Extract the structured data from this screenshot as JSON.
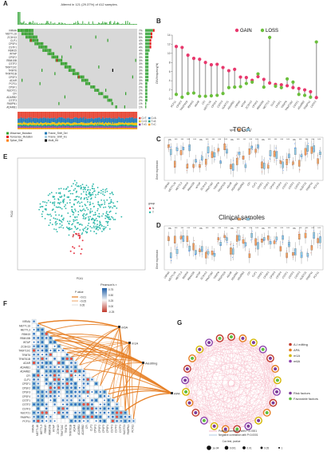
{
  "panels": [
    "A",
    "B",
    "C",
    "D",
    "E",
    "F",
    "G"
  ],
  "oncoprint": {
    "title": "Altered in 121 (29.37%) of 412 samples.",
    "genes": [
      "VIRMA",
      "METTL16",
      "ZC3H13",
      "CLP1",
      "CPSF4",
      "CSTF1",
      "RBM15",
      "WTAP",
      "CPSF2",
      "RBM15B",
      "CSTF2",
      "TRMT10C",
      "TRMT6",
      "TRMT61B",
      "CPSF3",
      "ADAR",
      "PCF11",
      "CPSF1",
      "NUDT21",
      "CFI",
      "ADARB2",
      "CSTF3",
      "PABPN1",
      "ADARB1"
    ],
    "percents": [
      "7%",
      "5%",
      "5%",
      "4%",
      "4%",
      "4%",
      "4%",
      "3%",
      "3%",
      "3%",
      "3%",
      "3%",
      "3%",
      "3%",
      "3%",
      "3%",
      "2%",
      "2%",
      "2%",
      "2%",
      "2%",
      "2%",
      "1%",
      "1%"
    ],
    "variant_legend": [
      "Missense_Mutation",
      "Nonsense_Mutation",
      "Splice_Site",
      "Frame_Shift_Del",
      "Frame_Shift_Ins",
      "Multi_Hit"
    ],
    "snv_legend": [
      "C>T",
      "C>A",
      "C>G",
      "T>A",
      "T>G",
      "T>C"
    ],
    "colors": {
      "missense": "#33a02c",
      "nonsense": "#e31a1c",
      "splice": "#ff7f00",
      "fsdel": "#1f78b4",
      "fsins": "#a6cee3",
      "multi": "#000000"
    }
  },
  "panel_b": {
    "ylabel": "CNV.frequency(%)",
    "legend": [
      {
        "label": "GAIN",
        "color": "#e8386d"
      },
      {
        "label": "LOSS",
        "color": "#6bbf3c"
      }
    ],
    "yticks": [
      "0",
      "2",
      "4",
      "6",
      "8",
      "10",
      "12",
      "14"
    ]
  },
  "panel_c": {
    "title": "TCGA",
    "ylabel": "Gene expression",
    "legend_title": "type",
    "legend_items": [
      "N",
      "T"
    ]
  },
  "panel_d": {
    "title": "Clinical samoles",
    "ylabel": "Gene expression",
    "legend_title": "type",
    "legend_items": [
      "N",
      "T"
    ]
  },
  "panel_e": {
    "xlabel": "PCA1",
    "ylabel": "PCA2",
    "legend_title": "group",
    "legend_items": [
      "N",
      "T"
    ]
  },
  "panel_f": {
    "legend_title": "Pearson's r",
    "legend_ticks": [
      "0.75",
      "0.50",
      "0.25",
      "0.00",
      "-0.25"
    ],
    "p_title": "P value",
    "p_items": [
      "<0.01",
      "<0.05",
      "0.05"
    ],
    "categories": [
      "m6A",
      "m1A",
      "Aiediting",
      "APA"
    ],
    "genes": [
      "VIRMA",
      "METTL16",
      "METTL3",
      "RBM15",
      "RBM15B",
      "WTAP",
      "ZC3H13",
      "TRMT10C",
      "TRMT6",
      "TRMT61B",
      "ADAR",
      "ADARB1",
      "ADARB2",
      "CFI",
      "CLP1",
      "CPSF1",
      "CPSF2",
      "CPSF3",
      "CPSF4",
      "CSTF1",
      "CSTF2",
      "CSTF3",
      "NUDT21",
      "PABPN1",
      "PCF11"
    ]
  },
  "panel_g": {
    "legend_groups": [
      {
        "label": "A-I editing",
        "color": "#c0392b"
      },
      {
        "label": "APA",
        "color": "#e67e22"
      },
      {
        "label": "m1A",
        "color": "#d4b700"
      },
      {
        "label": "m6A",
        "color": "#8e44ad"
      }
    ],
    "factor_legend": [
      {
        "label": "Risk factors",
        "color": "#7d3c98"
      },
      {
        "label": "Favorable factors",
        "color": "#5fbf3f"
      }
    ],
    "correlation_legend": [
      "Positive correlation with P<0.0001",
      "Negative correlation with P<0.0001"
    ],
    "pvalue_title": "Cox test, pvalue",
    "pvalue_items": [
      "1e-04",
      "0.001",
      "0.01",
      "0.05",
      "1"
    ]
  },
  "chart_data": [
    {
      "type": "bar",
      "title": "CNV frequency",
      "ylabel": "CNV.frequency(%)",
      "ylim": [
        0,
        14
      ],
      "categories": [
        "PCF11",
        "CPSF3",
        "TRMT61B",
        "RBM15",
        "ADAR",
        "CFI",
        "METTL16",
        "CPSF4",
        "CSTF3",
        "NUDT21",
        "ADARB1",
        "VIRMA",
        "WTAP",
        "ZC3H13",
        "CPSF2",
        "RBM15B",
        "METTL3",
        "CLP1",
        "CPSF1",
        "TRMT6",
        "TRMT10C",
        "CSTF1",
        "ADARB2",
        "PABPN1",
        "CSTF2"
      ],
      "series": [
        {
          "name": "GAIN",
          "values": [
            11.5,
            11.3,
            9.6,
            8.9,
            8.7,
            8.0,
            7.5,
            7.6,
            6.9,
            6.2,
            6.5,
            4.8,
            4.7,
            4.1,
            4.9,
            4.3,
            3.5,
            3.2,
            3.1,
            2.9,
            2.5,
            2.3,
            2.0,
            1.6,
            0.3
          ]
        },
        {
          "name": "LOSS",
          "values": [
            1.0,
            0.4,
            1.2,
            1.3,
            0.6,
            0.6,
            0.7,
            0.8,
            1.2,
            2.5,
            2.6,
            2.7,
            3.4,
            3.7,
            5.5,
            2.6,
            13.5,
            2.8,
            2.5,
            4.4,
            3.7,
            1.0,
            0.8,
            0.4,
            12.5
          ]
        }
      ]
    }
  ]
}
